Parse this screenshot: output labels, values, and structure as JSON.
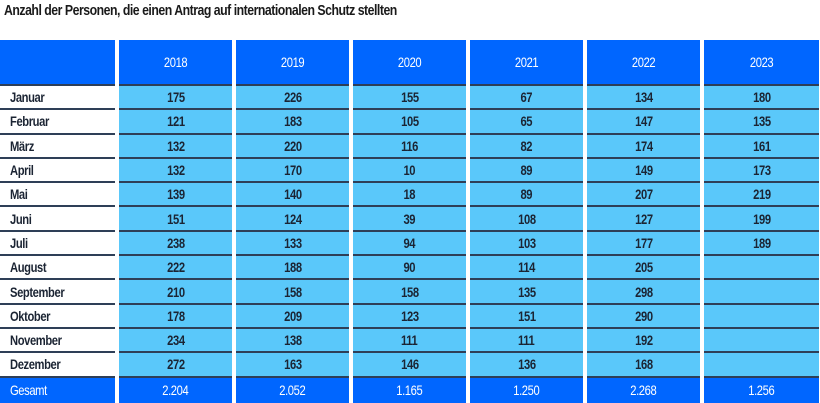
{
  "title": "Anzahl der Personen, die einen Antrag auf internationalen Schutz stellten",
  "colors": {
    "header_bg": "#0066ff",
    "cell_bg": "#5ac8fa",
    "label_bg": "#ffffff",
    "divider": "#2e3f57"
  },
  "table": {
    "columns": [
      "",
      "2018",
      "2019",
      "2020",
      "2021",
      "2022",
      "2023"
    ],
    "rows": [
      {
        "month": "Januar",
        "values": [
          "175",
          "226",
          "155",
          "67",
          "134",
          "180"
        ]
      },
      {
        "month": "Februar",
        "values": [
          "121",
          "183",
          "105",
          "65",
          "147",
          "135"
        ]
      },
      {
        "month": "März",
        "values": [
          "132",
          "220",
          "116",
          "82",
          "174",
          "161"
        ]
      },
      {
        "month": "April",
        "values": [
          "132",
          "170",
          "10",
          "89",
          "149",
          "173"
        ]
      },
      {
        "month": "Mai",
        "values": [
          "139",
          "140",
          "18",
          "89",
          "207",
          "219"
        ]
      },
      {
        "month": "Juni",
        "values": [
          "151",
          "124",
          "39",
          "108",
          "127",
          "199"
        ]
      },
      {
        "month": "Juli",
        "values": [
          "238",
          "133",
          "94",
          "103",
          "177",
          "189"
        ]
      },
      {
        "month": "August",
        "values": [
          "222",
          "188",
          "90",
          "114",
          "205",
          ""
        ]
      },
      {
        "month": "September",
        "values": [
          "210",
          "158",
          "158",
          "135",
          "298",
          ""
        ]
      },
      {
        "month": "Oktober",
        "values": [
          "178",
          "209",
          "123",
          "151",
          "290",
          ""
        ]
      },
      {
        "month": "November",
        "values": [
          "234",
          "138",
          "111",
          "111",
          "192",
          ""
        ]
      },
      {
        "month": "Dezember",
        "values": [
          "272",
          "163",
          "146",
          "136",
          "168",
          ""
        ]
      }
    ],
    "total": {
      "label": "Gesamt",
      "values": [
        "2.204",
        "2.052",
        "1.165",
        "1.250",
        "2.268",
        "1.256"
      ]
    }
  }
}
